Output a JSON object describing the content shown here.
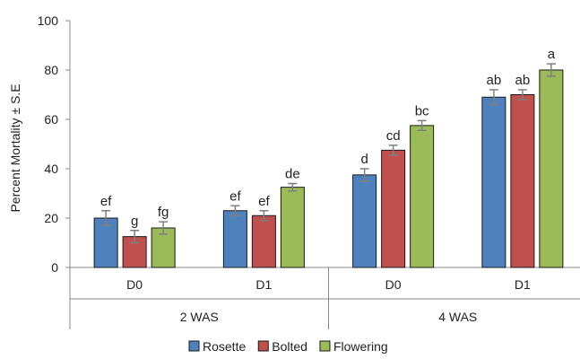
{
  "chart_data": {
    "type": "bar",
    "ylabel": "Percent Mortality ± S.E",
    "ylim": [
      0,
      100
    ],
    "yticks": [
      0,
      20,
      40,
      60,
      80,
      100
    ],
    "grid": false,
    "legend_position": "bottom",
    "groups": [
      {
        "label": "2 WAS",
        "subgroups": [
          "D0",
          "D1"
        ]
      },
      {
        "label": "4 WAS",
        "subgroups": [
          "D0",
          "D1"
        ]
      }
    ],
    "categories": [
      "D0",
      "D1",
      "D0",
      "D1"
    ],
    "series": [
      {
        "name": "Rosette",
        "color": "#4f81bd",
        "values": [
          20,
          23,
          37.5,
          69
        ],
        "errors": [
          3,
          2,
          2.5,
          3
        ],
        "letters": [
          "ef",
          "ef",
          "d",
          "ab"
        ]
      },
      {
        "name": "Bolted",
        "color": "#c0504d",
        "values": [
          12.5,
          21,
          47.5,
          70
        ],
        "errors": [
          2.5,
          2,
          2,
          2
        ],
        "letters": [
          "g",
          "ef",
          "cd",
          "ab"
        ]
      },
      {
        "name": "Flowering",
        "color": "#9bbb59",
        "values": [
          16,
          32.5,
          57.5,
          80
        ],
        "errors": [
          2.5,
          1.5,
          2,
          2.5
        ],
        "letters": [
          "fg",
          "de",
          "bc",
          "a"
        ]
      }
    ]
  }
}
